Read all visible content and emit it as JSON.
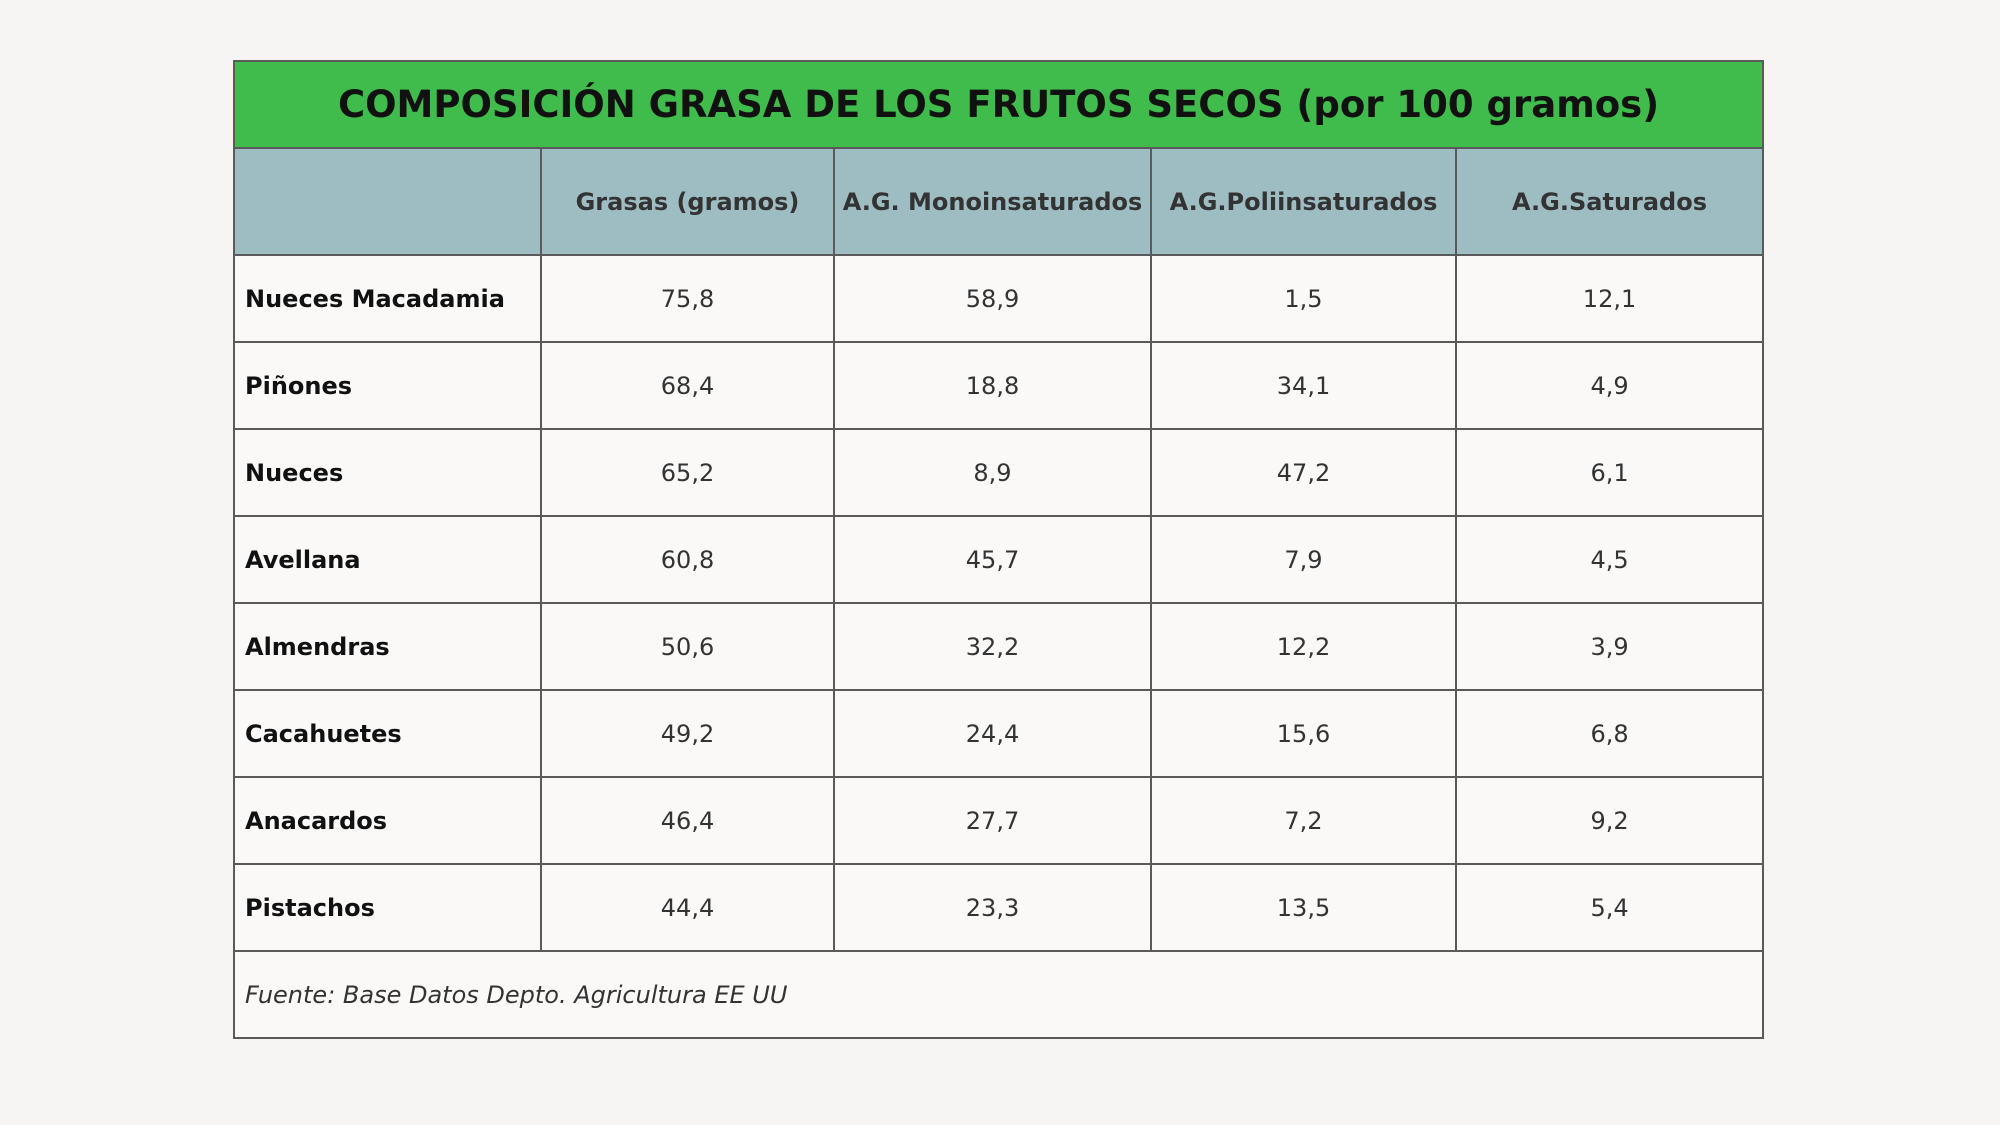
{
  "table": {
    "title": "COMPOSICIÓN GRASA DE LOS FRUTOS SECOS (por 100 gramos)",
    "columns": [
      "Grasas (gramos)",
      "A.G. Monoinsaturados",
      "A.G.Poliinsaturados",
      "A.G.Saturados"
    ],
    "rows": [
      [
        "Nueces Macadamia",
        "75,8",
        "58,9",
        "1,5",
        "12,1"
      ],
      [
        "Piñones",
        "68,4",
        "18,8",
        "34,1",
        "4,9"
      ],
      [
        "Nueces",
        "65,2",
        "8,9",
        "47,2",
        "6,1"
      ],
      [
        "Avellana",
        "60,8",
        "45,7",
        "7,9",
        "4,5"
      ],
      [
        "Almendras",
        "50,6",
        "32,2",
        "12,2",
        "3,9"
      ],
      [
        "Cacahuetes",
        "49,2",
        "24,4",
        "15,6",
        "6,8"
      ],
      [
        "Anacardos",
        "46,4",
        "27,7",
        "7,2",
        "9,2"
      ],
      [
        "Pistachos",
        "44,4",
        "23,3",
        "13,5",
        "5,4"
      ]
    ],
    "source": "Fuente: Base Datos Depto. Agricultura EE UU"
  }
}
